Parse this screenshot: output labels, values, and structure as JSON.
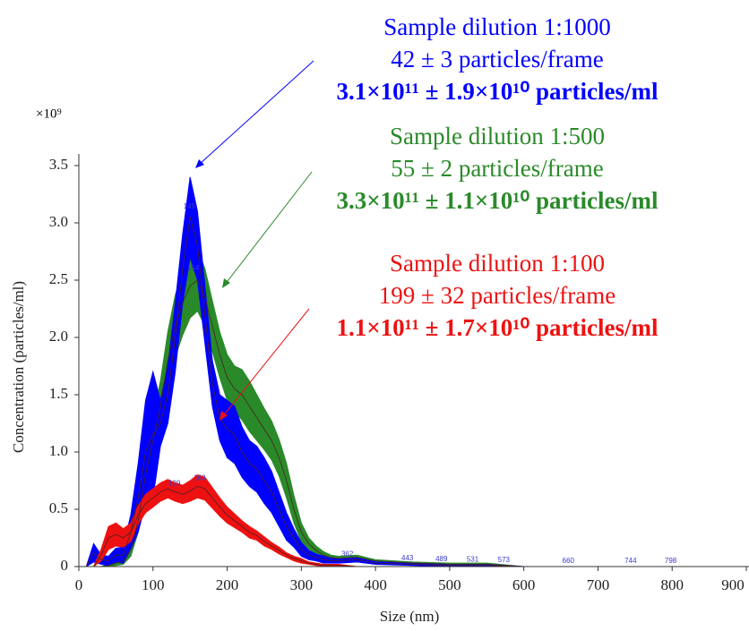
{
  "chart_data": {
    "type": "band-line",
    "xlabel": "Size (nm)",
    "ylabel": "Concentration (particles/ml)",
    "y_multiplier": "×10⁹",
    "x": [
      0,
      10,
      20,
      30,
      40,
      50,
      60,
      70,
      80,
      90,
      100,
      110,
      120,
      130,
      140,
      150,
      160,
      170,
      180,
      190,
      200,
      210,
      220,
      230,
      240,
      250,
      260,
      270,
      280,
      290,
      300,
      310,
      320,
      330,
      340,
      350,
      375,
      400,
      450,
      500,
      550,
      600,
      700,
      800,
      900
    ],
    "xlim": [
      0,
      900
    ],
    "xticks": [
      0,
      100,
      200,
      300,
      400,
      500,
      600,
      700,
      800,
      900
    ],
    "ylim": [
      0,
      3.5
    ],
    "yticks": [
      0,
      {
        "value": 0.5,
        "label": "0.5"
      },
      {
        "value": 1,
        "label": "1.0"
      },
      1.5,
      {
        "value": 2,
        "label": "2.0"
      },
      2.5,
      {
        "value": 3,
        "label": "3.0"
      },
      3.5
    ],
    "series": [
      {
        "color": "#2a8a2a",
        "label": [
          "Sample dilution 1:500",
          "55 ± 2 particles/frame",
          "3.3×10¹¹ ± 1.1×10¹⁰ particles/ml"
        ],
        "values": [
          0,
          0,
          0,
          0,
          0.01,
          0.03,
          0.05,
          0.15,
          0.4,
          0.8,
          1.1,
          1.4,
          1.8,
          2.1,
          2.3,
          2.45,
          2.5,
          2.35,
          2.1,
          1.85,
          1.65,
          1.55,
          1.5,
          1.4,
          1.3,
          1.2,
          1.1,
          0.95,
          0.75,
          0.5,
          0.3,
          0.2,
          0.14,
          0.1,
          0.08,
          0.07,
          0.08,
          0.05,
          0.03,
          0.02,
          0.02,
          0,
          0,
          0,
          0
        ],
        "errors": [
          0,
          0,
          0,
          0,
          0.01,
          0.02,
          0.03,
          0.06,
          0.1,
          0.15,
          0.2,
          0.22,
          0.25,
          0.27,
          0.28,
          0.28,
          0.27,
          0.25,
          0.22,
          0.2,
          0.2,
          0.2,
          0.22,
          0.22,
          0.2,
          0.18,
          0.17,
          0.16,
          0.15,
          0.12,
          0.08,
          0.05,
          0.04,
          0.03,
          0.02,
          0.02,
          0.02,
          0.01,
          0.01,
          0.01,
          0.01,
          0,
          0,
          0,
          0
        ],
        "peaks": [
          154
        ]
      },
      {
        "color": "#0000ff",
        "label": [
          "Sample dilution 1:1000",
          "42 ± 3 particles/frame",
          "3.1×10¹¹ ± 1.9×10¹⁰ particles/ml"
        ],
        "values": [
          0,
          0,
          0.12,
          0.06,
          0.05,
          0.1,
          0.1,
          0.3,
          0.6,
          1.0,
          1.15,
          1.25,
          1.5,
          2.0,
          2.6,
          3.05,
          2.8,
          2.2,
          1.6,
          1.3,
          1.2,
          1.15,
          1.0,
          0.9,
          0.85,
          0.75,
          0.65,
          0.5,
          0.35,
          0.25,
          0.15,
          0.1,
          0.08,
          0.06,
          0.05,
          0.05,
          0.06,
          0.03,
          0.02,
          0.01,
          0.01,
          0,
          0,
          0,
          0
        ],
        "errors": [
          0,
          0,
          0.08,
          0.04,
          0.04,
          0.06,
          0.07,
          0.15,
          0.3,
          0.45,
          0.55,
          0.2,
          0.25,
          0.3,
          0.3,
          0.35,
          0.3,
          0.25,
          0.2,
          0.2,
          0.25,
          0.25,
          0.22,
          0.2,
          0.2,
          0.2,
          0.18,
          0.15,
          0.12,
          0.08,
          0.06,
          0.04,
          0.03,
          0.03,
          0.02,
          0.02,
          0.02,
          0.01,
          0.01,
          0.01,
          0.01,
          0,
          0,
          0,
          0
        ],
        "peaks": [
          149,
          362,
          443,
          489,
          531,
          573,
          660,
          744,
          798
        ]
      },
      {
        "color": "#ee1111",
        "label": [
          "Sample dilution 1:100",
          "199 ± 32 particles/frame",
          "1.1×10¹¹ ± 1.7×10¹⁰ particles/ml"
        ],
        "values": [
          0,
          0,
          0,
          0.1,
          0.25,
          0.28,
          0.25,
          0.3,
          0.45,
          0.55,
          0.6,
          0.65,
          0.68,
          0.65,
          0.63,
          0.66,
          0.7,
          0.68,
          0.6,
          0.52,
          0.45,
          0.4,
          0.35,
          0.3,
          0.27,
          0.22,
          0.18,
          0.14,
          0.1,
          0.07,
          0.05,
          0.03,
          0.02,
          0.01,
          0.01,
          0.01,
          0,
          0,
          0,
          0,
          0,
          0,
          0,
          0,
          0
        ],
        "errors": [
          0,
          0,
          0,
          0.05,
          0.1,
          0.1,
          0.08,
          0.08,
          0.08,
          0.08,
          0.08,
          0.08,
          0.08,
          0.08,
          0.08,
          0.09,
          0.1,
          0.1,
          0.09,
          0.08,
          0.07,
          0.06,
          0.05,
          0.05,
          0.04,
          0.04,
          0.03,
          0.03,
          0.02,
          0.02,
          0.02,
          0.01,
          0.01,
          0.01,
          0.01,
          0.01,
          0,
          0,
          0,
          0,
          0,
          0,
          0,
          0,
          0
        ],
        "peaks": [
          129,
          163
        ]
      }
    ]
  }
}
